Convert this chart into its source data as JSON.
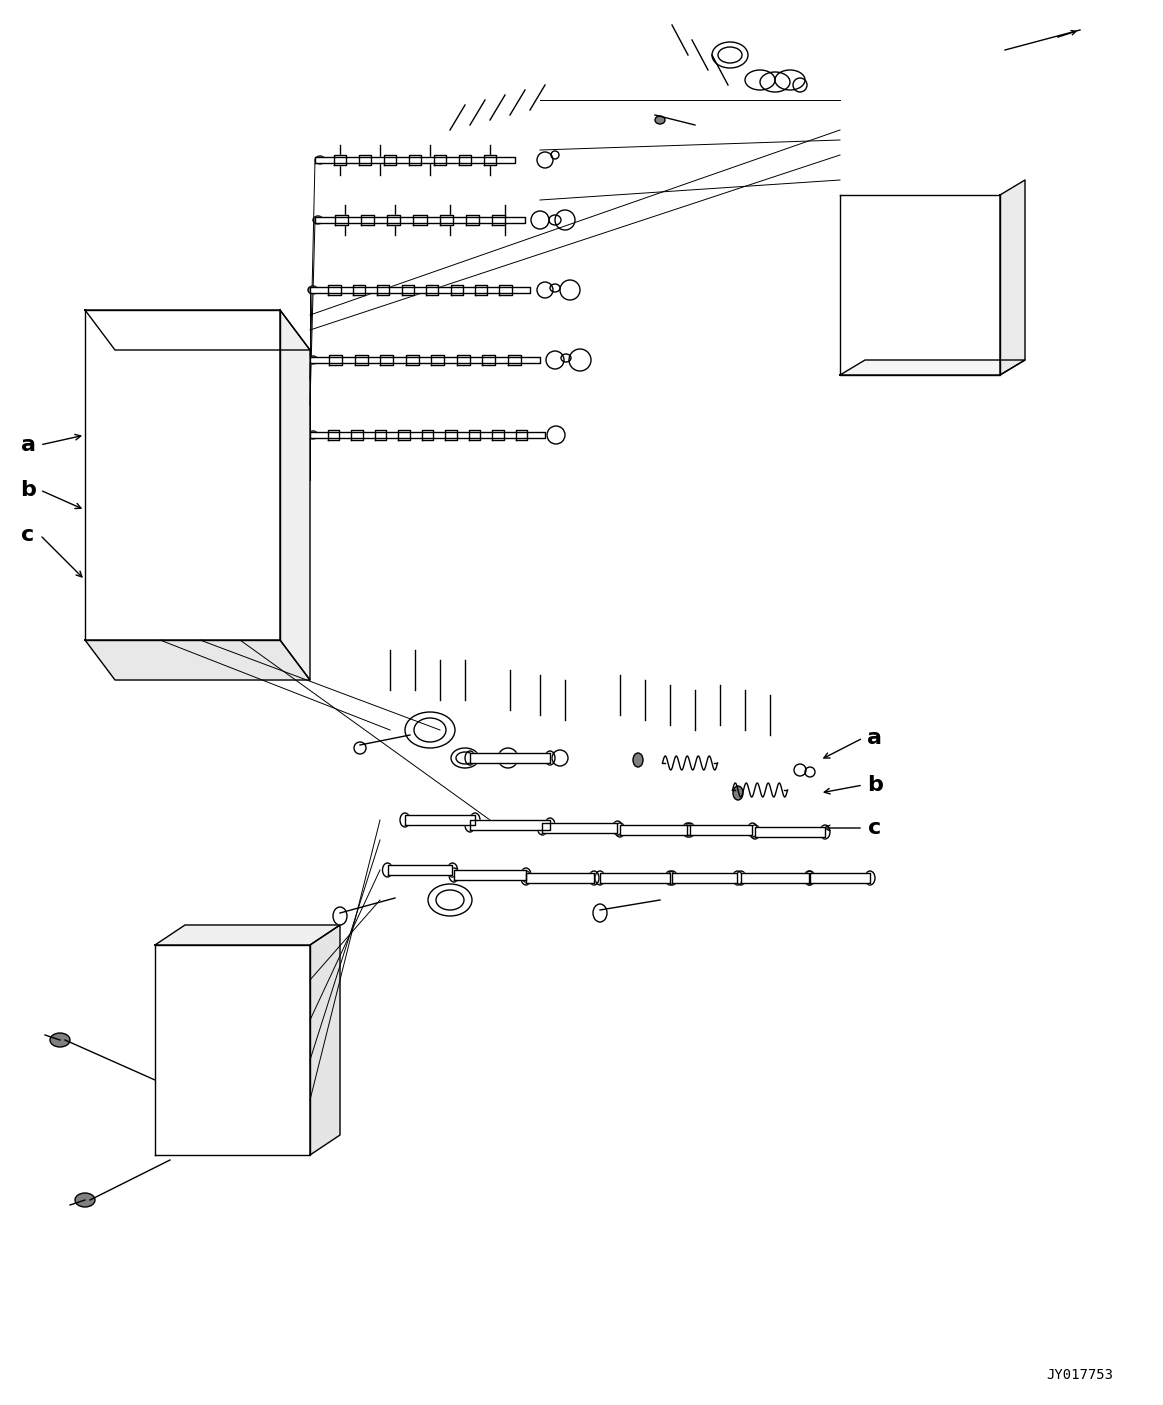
{
  "bg_color": "#ffffff",
  "line_color": "#000000",
  "fig_width": 11.63,
  "fig_height": 14.05,
  "dpi": 100,
  "watermark": "JY017753",
  "labels": {
    "a_left": "a",
    "b_left": "b",
    "c_left": "c",
    "a_right": "a",
    "b_right": "b",
    "c_right": "c"
  }
}
